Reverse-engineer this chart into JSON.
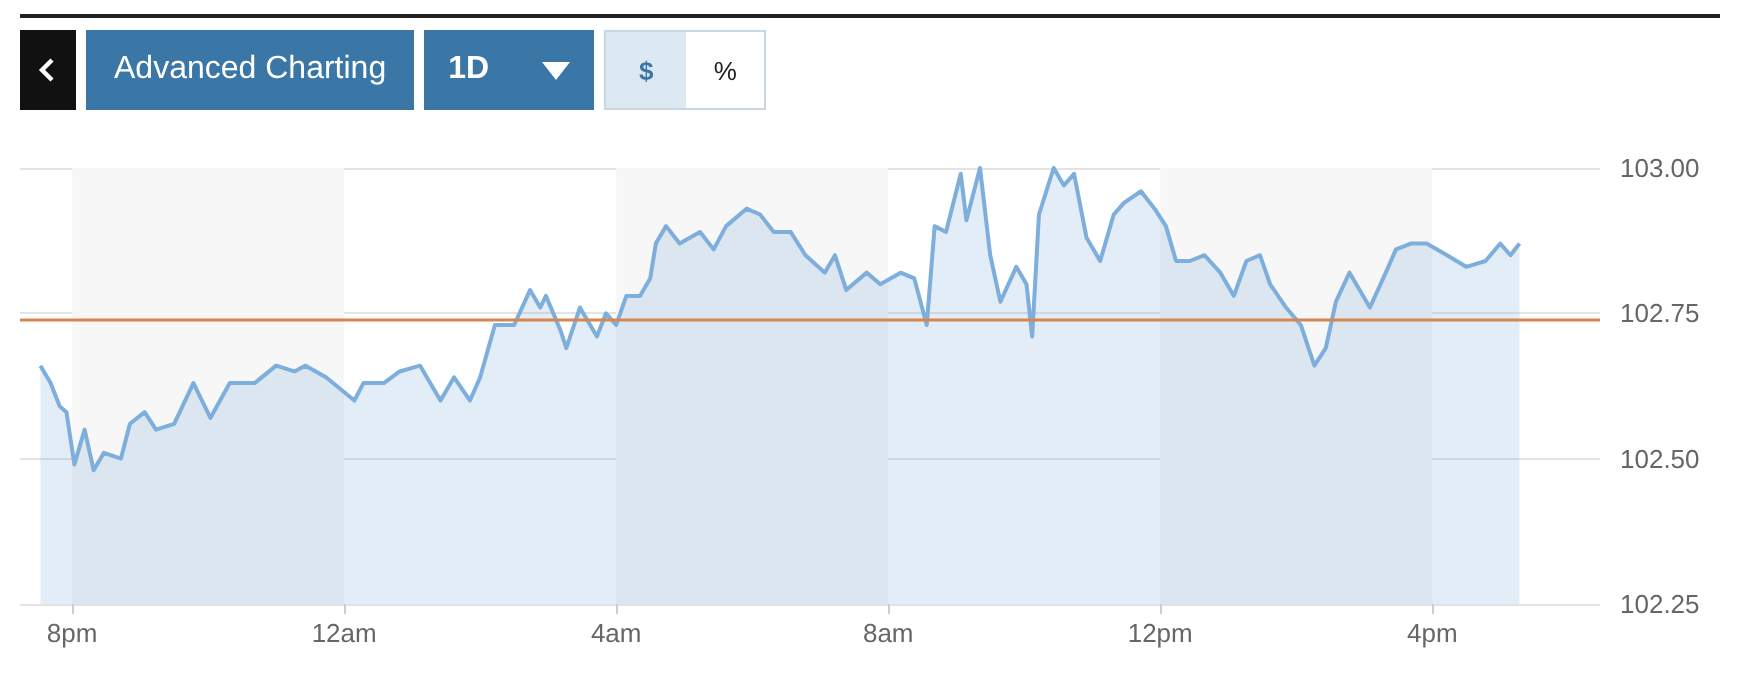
{
  "chart_data": {
    "type": "area",
    "annotations": [
      "Advanced Charting",
      "1D",
      "$",
      "%"
    ],
    "x": [
      "--01-01T19:32",
      "--01-01T19:41",
      "--01-01T19:49",
      "--01-01T19:55",
      "--01-01T20:02",
      "--01-01T20:11",
      "--01-01T20:19",
      "--01-01T20:28",
      "--01-01T20:43",
      "--01-01T20:51",
      "--01-01T21:04",
      "--01-01T21:14",
      "--01-01T21:30",
      "--01-01T21:47",
      "--01-01T22:02",
      "--01-01T22:19",
      "--01-01T22:41",
      "--01-01T23:00",
      "--01-01T23:16",
      "--01-01T23:26",
      "--01-01T23:44",
      "--01-02T00:09",
      "--01-02T00:17",
      "--01-02T00:35",
      "--01-02T00:49",
      "--01-02T01:07",
      "--01-02T01:25",
      "--01-02T01:37",
      "--01-02T01:51",
      "--01-02T02:00",
      "--01-02T02:13",
      "--01-02T02:30",
      "--01-02T02:44",
      "--01-02T02:53",
      "--01-02T02:58",
      "--01-02T03:11",
      "--01-02T03:16",
      "--01-02T03:28",
      "--01-02T03:43",
      "--01-02T03:51",
      "--01-02T04:00",
      "--01-02T04:09",
      "--01-02T04:21",
      "--01-02T04:30",
      "--01-02T04:35",
      "--01-02T04:44",
      "--01-02T04:56",
      "--01-02T05:14",
      "--01-02T05:26",
      "--01-02T05:37",
      "--01-02T05:55",
      "--01-02T06:07",
      "--01-02T06:19",
      "--01-02T06:34",
      "--01-02T06:47",
      "--01-02T07:04",
      "--01-02T07:13",
      "--01-02T07:23",
      "--01-02T07:41",
      "--01-02T07:53",
      "--01-02T08:11",
      "--01-02T08:23",
      "--01-02T08:34",
      "--01-02T08:41",
      "--01-02T08:51",
      "--01-02T09:04",
      "--01-02T09:09",
      "--01-02T09:21",
      "--01-02T09:30",
      "--01-02T09:39",
      "--01-02T09:53",
      "--01-02T10:02",
      "--01-02T10:07",
      "--01-02T10:13",
      "--01-02T10:26",
      "--01-02T10:35",
      "--01-02T10:44",
      "--01-02T10:55",
      "--01-02T11:07",
      "--01-02T11:19",
      "--01-02T11:28",
      "--01-02T11:43",
      "--01-02T11:55",
      "--01-02T12:05",
      "--01-02T12:14",
      "--01-02T12:26",
      "--01-02T12:39",
      "--01-02T12:53",
      "--01-02T13:05",
      "--01-02T13:16",
      "--01-02T13:28",
      "--01-02T13:37",
      "--01-02T13:51",
      "--01-02T14:04",
      "--01-02T14:16",
      "--01-02T14:26",
      "--01-02T14:35",
      "--01-02T14:47",
      "--01-02T15:05",
      "--01-02T15:19",
      "--01-02T15:28",
      "--01-02T15:41",
      "--01-02T15:55",
      "--01-02T16:13",
      "--01-02T16:30",
      "--01-02T16:47",
      "--01-02T17:00",
      "--01-02T17:09",
      "--01-02T17:17"
    ],
    "series": [
      {
        "color": "#7eaedc",
        "values": [
          102.66,
          102.63,
          102.59,
          102.58,
          102.49,
          102.55,
          102.48,
          102.51,
          102.5,
          102.56,
          102.58,
          102.55,
          102.56,
          102.63,
          102.57,
          102.63,
          102.63,
          102.66,
          102.65,
          102.66,
          102.64,
          102.6,
          102.63,
          102.63,
          102.65,
          102.66,
          102.6,
          102.64,
          102.6,
          102.64,
          102.73,
          102.73,
          102.79,
          102.76,
          102.78,
          102.72,
          102.69,
          102.76,
          102.71,
          102.75,
          102.73,
          102.78,
          102.78,
          102.81,
          102.87,
          102.9,
          102.87,
          102.89,
          102.86,
          102.9,
          102.93,
          102.92,
          102.89,
          102.89,
          102.85,
          102.82,
          102.85,
          102.79,
          102.82,
          102.8,
          102.82,
          102.81,
          102.73,
          102.9,
          102.89,
          102.99,
          102.91,
          103.0,
          102.85,
          102.77,
          102.83,
          102.8,
          102.71,
          102.92,
          103.0,
          102.97,
          102.99,
          102.88,
          102.84,
          102.92,
          102.94,
          102.96,
          102.93,
          102.9,
          102.84,
          102.84,
          102.85,
          102.82,
          102.78,
          102.84,
          102.85,
          102.8,
          102.76,
          102.73,
          102.66,
          102.69,
          102.77,
          102.82,
          102.76,
          102.82,
          102.86,
          102.87,
          102.87,
          102.85,
          102.83,
          102.84,
          102.87,
          102.85,
          102.87
        ]
      }
    ],
    "xlim": [
      "--01-01T19:14",
      "--01-02T18:28"
    ],
    "xticks": [
      {
        "value": "--01-01T20:00",
        "label": "8pm"
      },
      {
        "value": "--01-02T00:00",
        "label": "12am"
      },
      {
        "value": "--01-02T04:00",
        "label": "4am"
      },
      {
        "value": "--01-02T08:00",
        "label": "8am"
      },
      {
        "value": "--01-02T12:00",
        "label": "12pm"
      },
      {
        "value": "--01-02T16:00",
        "label": "4pm"
      }
    ],
    "ylim": [
      102.25,
      103.0
    ],
    "yticks": [
      102.25,
      {
        "value": 102.5,
        "label": "102.50"
      },
      102.75,
      {
        "value": 103,
        "label": "103.00"
      }
    ],
    "grid": "y",
    "ref_lines": [
      {
        "axis": "y",
        "value": 102.74,
        "color": "#d8864f"
      }
    ],
    "bands": [
      {
        "axis": "x",
        "from": "--01-01T20:00",
        "to": "--01-02T00:00",
        "color": "#f7f7f7"
      },
      {
        "axis": "x",
        "from": "--01-02T04:00",
        "to": "--01-02T08:00",
        "color": "#f7f7f7"
      },
      {
        "axis": "x",
        "from": "--01-02T12:00",
        "to": "--01-02T16:00",
        "color": "#f7f7f7"
      }
    ]
  }
}
